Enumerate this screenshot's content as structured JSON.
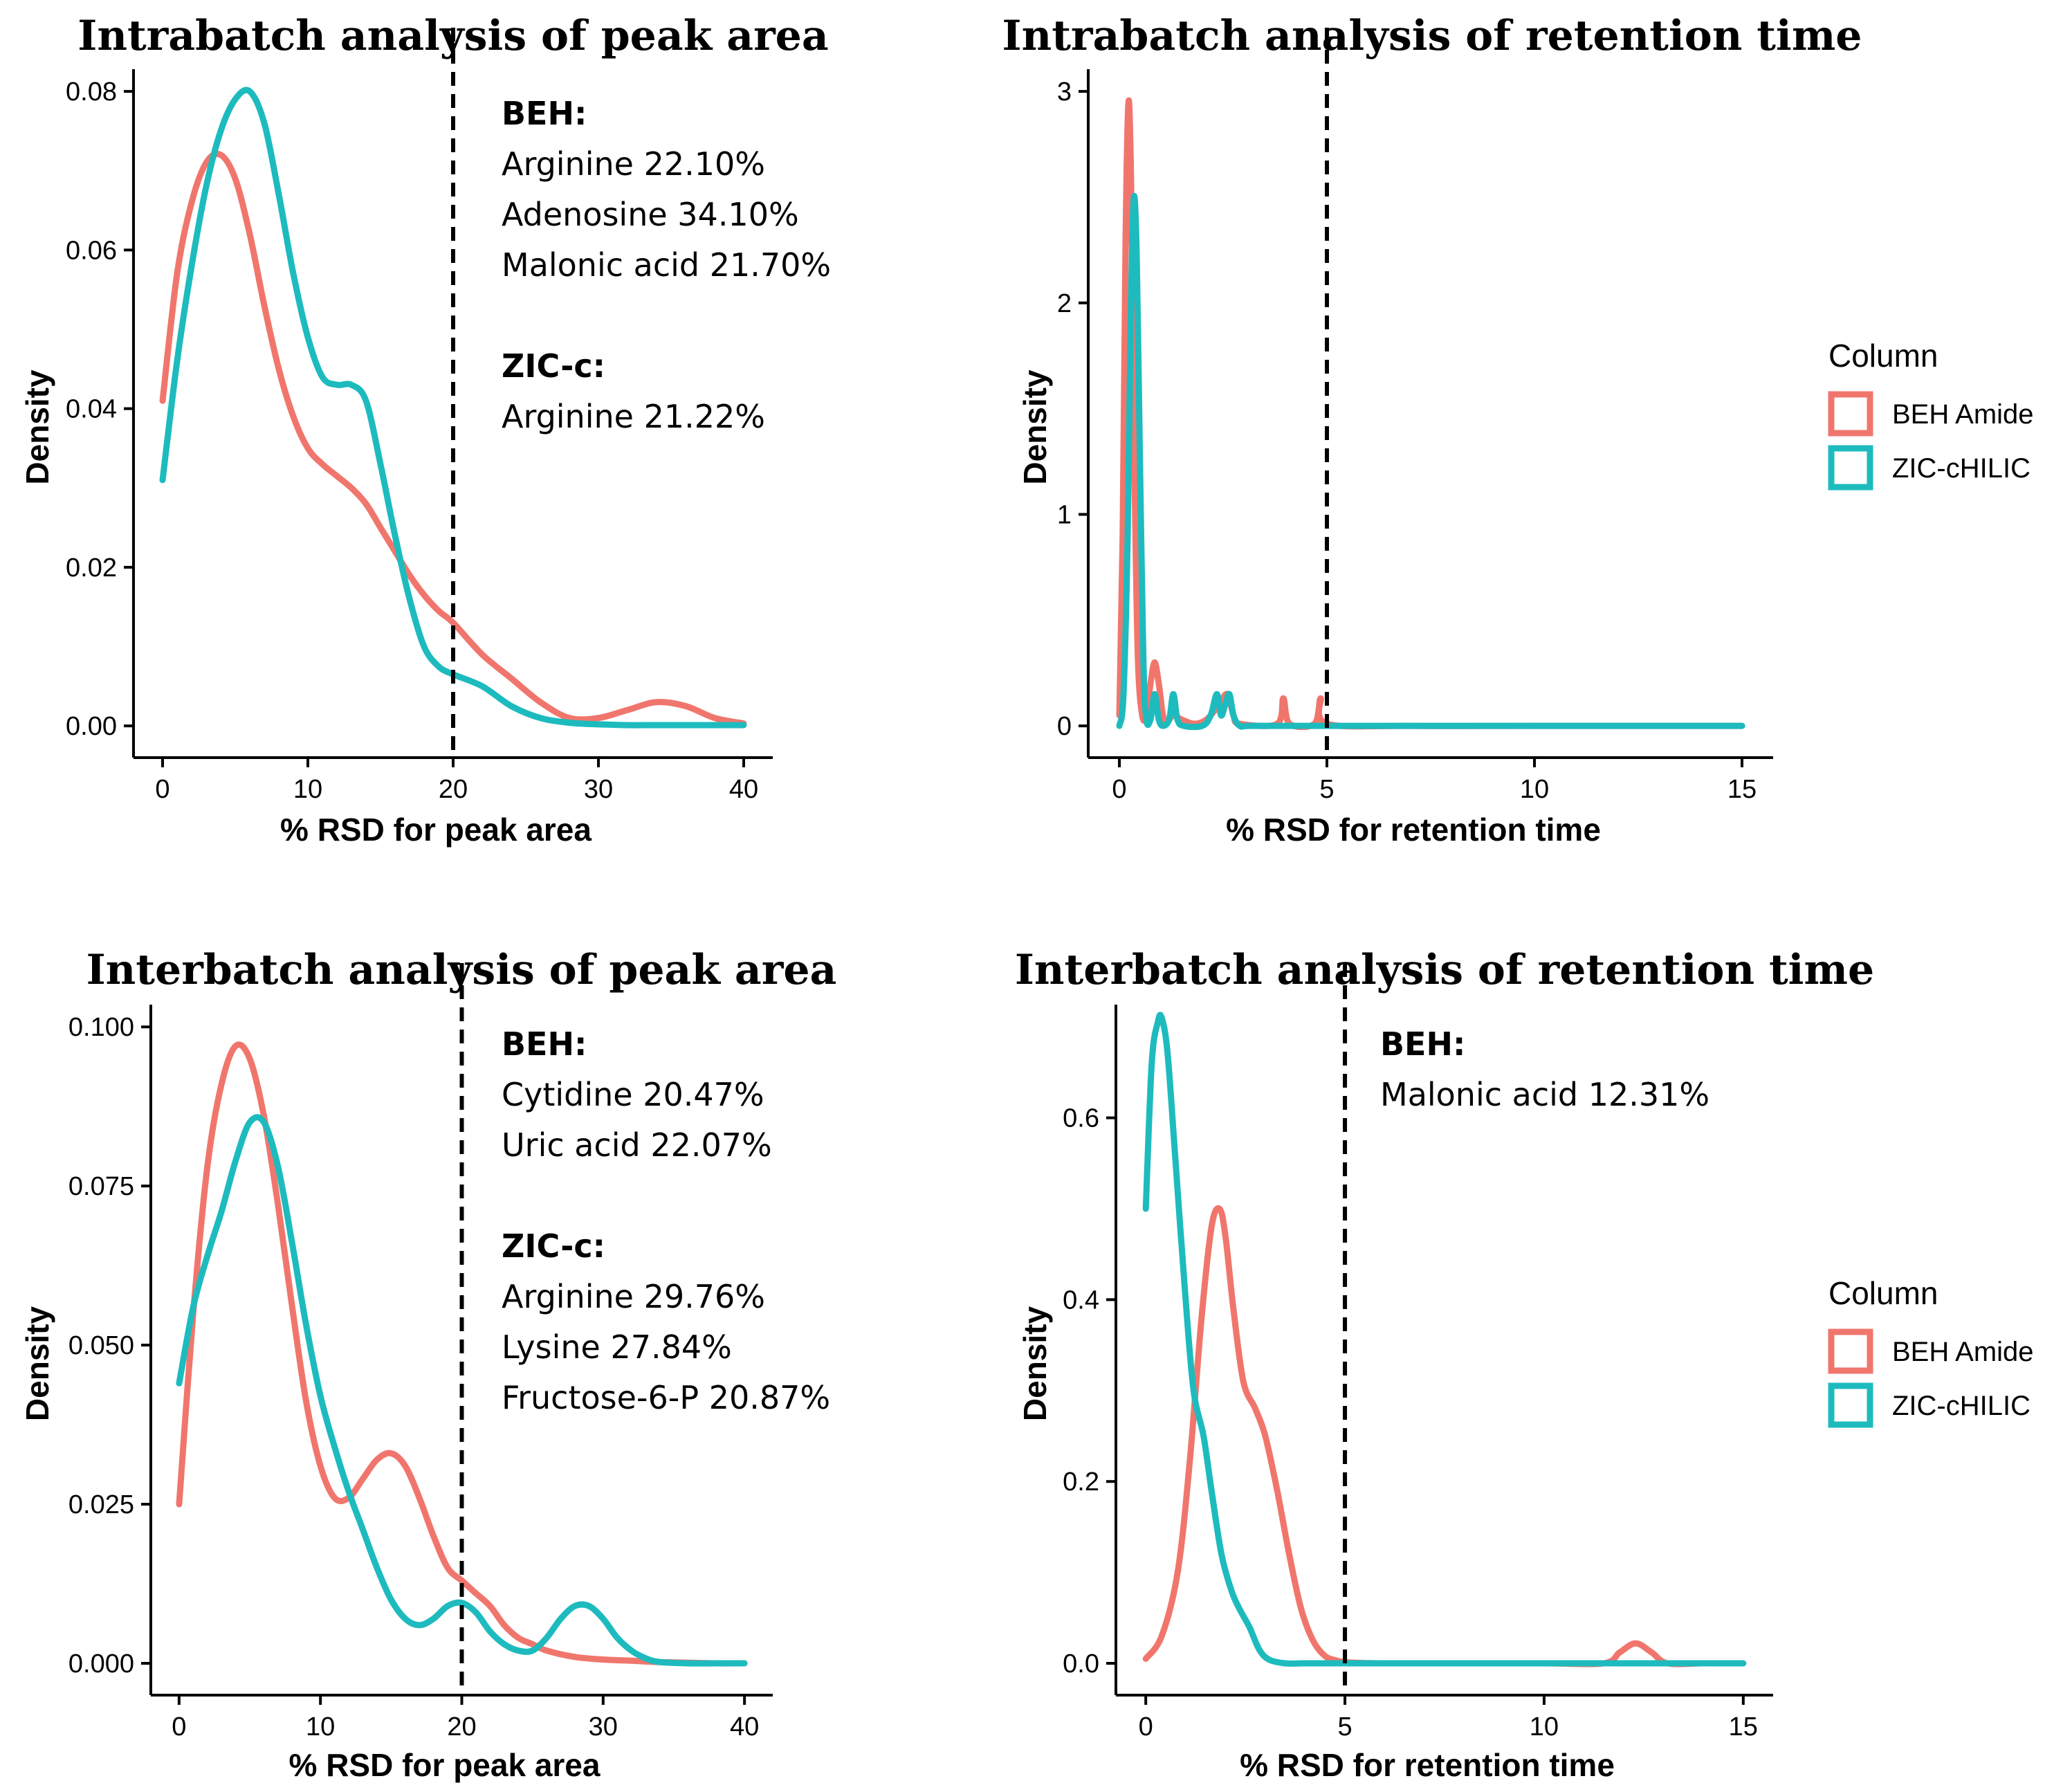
{
  "colors": {
    "BEH Amide": "#f0766d",
    "ZIC-cHILIC": "#1dbbbe"
  },
  "chart_data": [
    {
      "type": "line",
      "title": "Intrabatch analysis of peak area",
      "xlabel": "% RSD for peak area",
      "ylabel": "Density",
      "xlim": [
        0,
        40
      ],
      "ylim": [
        0,
        0.08
      ],
      "xticks": [
        0,
        10,
        20,
        30,
        40
      ],
      "yticks": [
        0,
        0.02,
        0.04,
        0.06,
        0.08
      ],
      "ytick_labels": [
        "0.00",
        "0.02",
        "0.04",
        "0.06",
        "0.08"
      ],
      "threshold": 20,
      "annotation": [
        {
          "text": "BEH:",
          "bold": true
        },
        {
          "text": "Arginine 22.10%",
          "bold": false
        },
        {
          "text": "Adenosine 34.10%",
          "bold": false
        },
        {
          "text": "Malonic acid 21.70%",
          "bold": false
        },
        {
          "text": "",
          "bold": false
        },
        {
          "text": "ZIC-c:",
          "bold": true
        },
        {
          "text": "Arginine 21.22%",
          "bold": false
        }
      ],
      "series": [
        {
          "name": "BEH Amide",
          "x": [
            0,
            1,
            2,
            3,
            4,
            5,
            6,
            7,
            8,
            9,
            10,
            11,
            12,
            13,
            14,
            15,
            16,
            17,
            18,
            19,
            20,
            22,
            24,
            26,
            28,
            30,
            32,
            34,
            36,
            38,
            40
          ],
          "values": [
            0.041,
            0.057,
            0.066,
            0.071,
            0.072,
            0.069,
            0.062,
            0.053,
            0.045,
            0.039,
            0.035,
            0.033,
            0.0315,
            0.03,
            0.028,
            0.025,
            0.022,
            0.019,
            0.0165,
            0.0145,
            0.013,
            0.009,
            0.006,
            0.003,
            0.001,
            0.001,
            0.002,
            0.003,
            0.0025,
            0.001,
            0.0003
          ]
        },
        {
          "name": "ZIC-cHILIC",
          "x": [
            0,
            1,
            2,
            3,
            4,
            5,
            6,
            7,
            8,
            9,
            10,
            11,
            12,
            13,
            14,
            15,
            16,
            17,
            18,
            19,
            20,
            22,
            24,
            26,
            28,
            30,
            32,
            34,
            36,
            38,
            40
          ],
          "values": [
            0.031,
            0.046,
            0.058,
            0.068,
            0.075,
            0.079,
            0.08,
            0.076,
            0.067,
            0.057,
            0.049,
            0.044,
            0.043,
            0.043,
            0.041,
            0.033,
            0.024,
            0.016,
            0.01,
            0.0075,
            0.0065,
            0.005,
            0.0025,
            0.001,
            0.0004,
            0.0002,
            0.0001,
            0.0001,
            0.0001,
            0.0001,
            0.0001
          ]
        }
      ]
    },
    {
      "type": "line",
      "title": "Intrabatch analysis of retention time",
      "xlabel": "% RSD for retention time",
      "ylabel": "Density",
      "xlim": [
        0,
        15
      ],
      "ylim": [
        0,
        3
      ],
      "xticks": [
        0,
        5,
        10,
        15
      ],
      "yticks": [
        0,
        1,
        2,
        3
      ],
      "ytick_labels": [
        "0",
        "1",
        "2",
        "3"
      ],
      "threshold": 5,
      "annotation": [],
      "legend": {
        "title": "Column",
        "entries": [
          "BEH Amide",
          "ZIC-cHILIC"
        ]
      },
      "series": [
        {
          "name": "BEH Amide",
          "x": [
            0,
            0.08,
            0.15,
            0.22,
            0.28,
            0.33,
            0.38,
            0.45,
            0.55,
            0.65,
            0.75,
            0.85,
            0.95,
            1.05,
            1.15,
            1.3,
            1.5,
            1.8,
            2.1,
            2.4,
            2.6,
            2.75,
            2.9,
            3.8,
            3.95,
            4.1,
            4.7,
            4.85,
            5.0,
            7,
            10,
            15
          ],
          "values": [
            0.05,
            0.9,
            2.3,
            2.95,
            2.6,
            1.8,
            1.0,
            0.3,
            0.05,
            0.05,
            0.2,
            0.3,
            0.2,
            0.05,
            0.02,
            0.05,
            0.03,
            0.01,
            0.03,
            0.1,
            0.15,
            0.05,
            0.01,
            0.01,
            0.13,
            0.01,
            0.01,
            0.13,
            0.01,
            0.0,
            0.0,
            0.0
          ]
        },
        {
          "name": "ZIC-cHILIC",
          "x": [
            0,
            0.1,
            0.2,
            0.28,
            0.35,
            0.42,
            0.5,
            0.58,
            0.65,
            0.75,
            0.85,
            0.95,
            1.05,
            1.2,
            1.3,
            1.4,
            1.55,
            2.0,
            2.2,
            2.35,
            2.45,
            2.55,
            2.65,
            2.75,
            2.9,
            3.2,
            5,
            10,
            15
          ],
          "values": [
            0.0,
            0.15,
            0.9,
            2.0,
            2.5,
            2.2,
            1.2,
            0.3,
            0.03,
            0.03,
            0.15,
            0.03,
            0.0,
            0.03,
            0.15,
            0.03,
            0.0,
            0.0,
            0.05,
            0.15,
            0.05,
            0.1,
            0.15,
            0.05,
            0.0,
            0.0,
            0.0,
            0.0,
            0.0
          ]
        }
      ]
    },
    {
      "type": "line",
      "title": "Interbatch analysis of peak area",
      "xlabel": "% RSD for peak area",
      "ylabel": "Density",
      "xlim": [
        0,
        40
      ],
      "ylim": [
        0,
        0.1
      ],
      "xticks": [
        0,
        10,
        20,
        30,
        40
      ],
      "yticks": [
        0,
        0.025,
        0.05,
        0.075,
        0.1
      ],
      "ytick_labels": [
        "0.000",
        "0.025",
        "0.050",
        "0.075",
        "0.100"
      ],
      "threshold": 20,
      "annotation": [
        {
          "text": "BEH:",
          "bold": true
        },
        {
          "text": "Cytidine 20.47%",
          "bold": false
        },
        {
          "text": "Uric acid 22.07%",
          "bold": false
        },
        {
          "text": "",
          "bold": false
        },
        {
          "text": "ZIC-c:",
          "bold": true
        },
        {
          "text": "Arginine 29.76%",
          "bold": false
        },
        {
          "text": "Lysine 27.84%",
          "bold": false
        },
        {
          "text": "Fructose-6-P 20.87%",
          "bold": false
        }
      ],
      "series": [
        {
          "name": "BEH Amide",
          "x": [
            0,
            1,
            2,
            3,
            4,
            5,
            6,
            7,
            8,
            9,
            10,
            11,
            12,
            13,
            14,
            15,
            16,
            17,
            18,
            19,
            20,
            21,
            22,
            23,
            24,
            25,
            26,
            28,
            30,
            32,
            34,
            36,
            38,
            40
          ],
          "values": [
            0.025,
            0.055,
            0.078,
            0.091,
            0.097,
            0.095,
            0.086,
            0.072,
            0.056,
            0.041,
            0.031,
            0.026,
            0.026,
            0.029,
            0.032,
            0.033,
            0.031,
            0.026,
            0.02,
            0.015,
            0.013,
            0.011,
            0.009,
            0.006,
            0.004,
            0.003,
            0.002,
            0.001,
            0.0006,
            0.0004,
            0.0002,
            0.0001,
            0.0,
            0.0
          ]
        },
        {
          "name": "ZIC-cHILIC",
          "x": [
            0,
            1,
            2,
            3,
            4,
            5,
            6,
            7,
            8,
            9,
            10,
            11,
            12,
            13,
            14,
            15,
            16,
            17,
            18,
            19,
            20,
            21,
            22,
            23,
            24,
            25,
            26,
            27,
            28,
            29,
            30,
            31,
            32,
            33,
            34,
            36,
            38,
            40
          ],
          "values": [
            0.044,
            0.056,
            0.064,
            0.071,
            0.079,
            0.085,
            0.085,
            0.078,
            0.066,
            0.053,
            0.042,
            0.034,
            0.027,
            0.021,
            0.015,
            0.01,
            0.007,
            0.006,
            0.007,
            0.009,
            0.0095,
            0.008,
            0.005,
            0.003,
            0.002,
            0.002,
            0.004,
            0.007,
            0.009,
            0.009,
            0.007,
            0.004,
            0.002,
            0.0008,
            0.0002,
            0.0,
            0.0,
            0.0
          ]
        }
      ]
    },
    {
      "type": "line",
      "title": "Interbatch analysis of retention time",
      "xlabel": "% RSD for retention time",
      "ylabel": "Density",
      "xlim": [
        0,
        15
      ],
      "ylim": [
        0,
        0.7
      ],
      "xticks": [
        0,
        5,
        10,
        15
      ],
      "yticks": [
        0,
        0.2,
        0.4,
        0.6
      ],
      "ytick_labels": [
        "0.0",
        "0.2",
        "0.4",
        "0.6"
      ],
      "threshold": 5,
      "annotation": [
        {
          "text": "BEH:",
          "bold": true
        },
        {
          "text": "Malonic acid 12.31%",
          "bold": false
        }
      ],
      "legend": {
        "title": "Column",
        "entries": [
          "BEH Amide",
          "ZIC-cHILIC"
        ]
      },
      "series": [
        {
          "name": "BEH Amide",
          "x": [
            0,
            0.4,
            0.8,
            1.1,
            1.4,
            1.65,
            1.85,
            2.0,
            2.2,
            2.45,
            2.75,
            3.0,
            3.3,
            3.6,
            3.9,
            4.2,
            4.5,
            4.8,
            5.1,
            6,
            8,
            10,
            11.5,
            11.9,
            12.3,
            12.7,
            13.1,
            14,
            15
          ],
          "values": [
            0.005,
            0.03,
            0.1,
            0.22,
            0.38,
            0.48,
            0.5,
            0.47,
            0.39,
            0.31,
            0.28,
            0.25,
            0.19,
            0.12,
            0.06,
            0.025,
            0.008,
            0.003,
            0.001,
            0.0,
            0.0,
            0.0,
            0.0,
            0.012,
            0.022,
            0.012,
            0.0,
            0.0,
            0.0
          ]
        },
        {
          "name": "ZIC-cHILIC",
          "x": [
            0,
            0.15,
            0.3,
            0.4,
            0.55,
            0.75,
            1.0,
            1.2,
            1.45,
            1.65,
            1.9,
            2.15,
            2.35,
            2.6,
            2.85,
            3.1,
            3.5,
            4,
            5,
            10,
            15
          ],
          "values": [
            0.5,
            0.66,
            0.705,
            0.71,
            0.67,
            0.55,
            0.4,
            0.3,
            0.25,
            0.19,
            0.12,
            0.08,
            0.06,
            0.04,
            0.015,
            0.004,
            0.0,
            0.0,
            0.0,
            0.0,
            0.0
          ]
        }
      ]
    }
  ]
}
